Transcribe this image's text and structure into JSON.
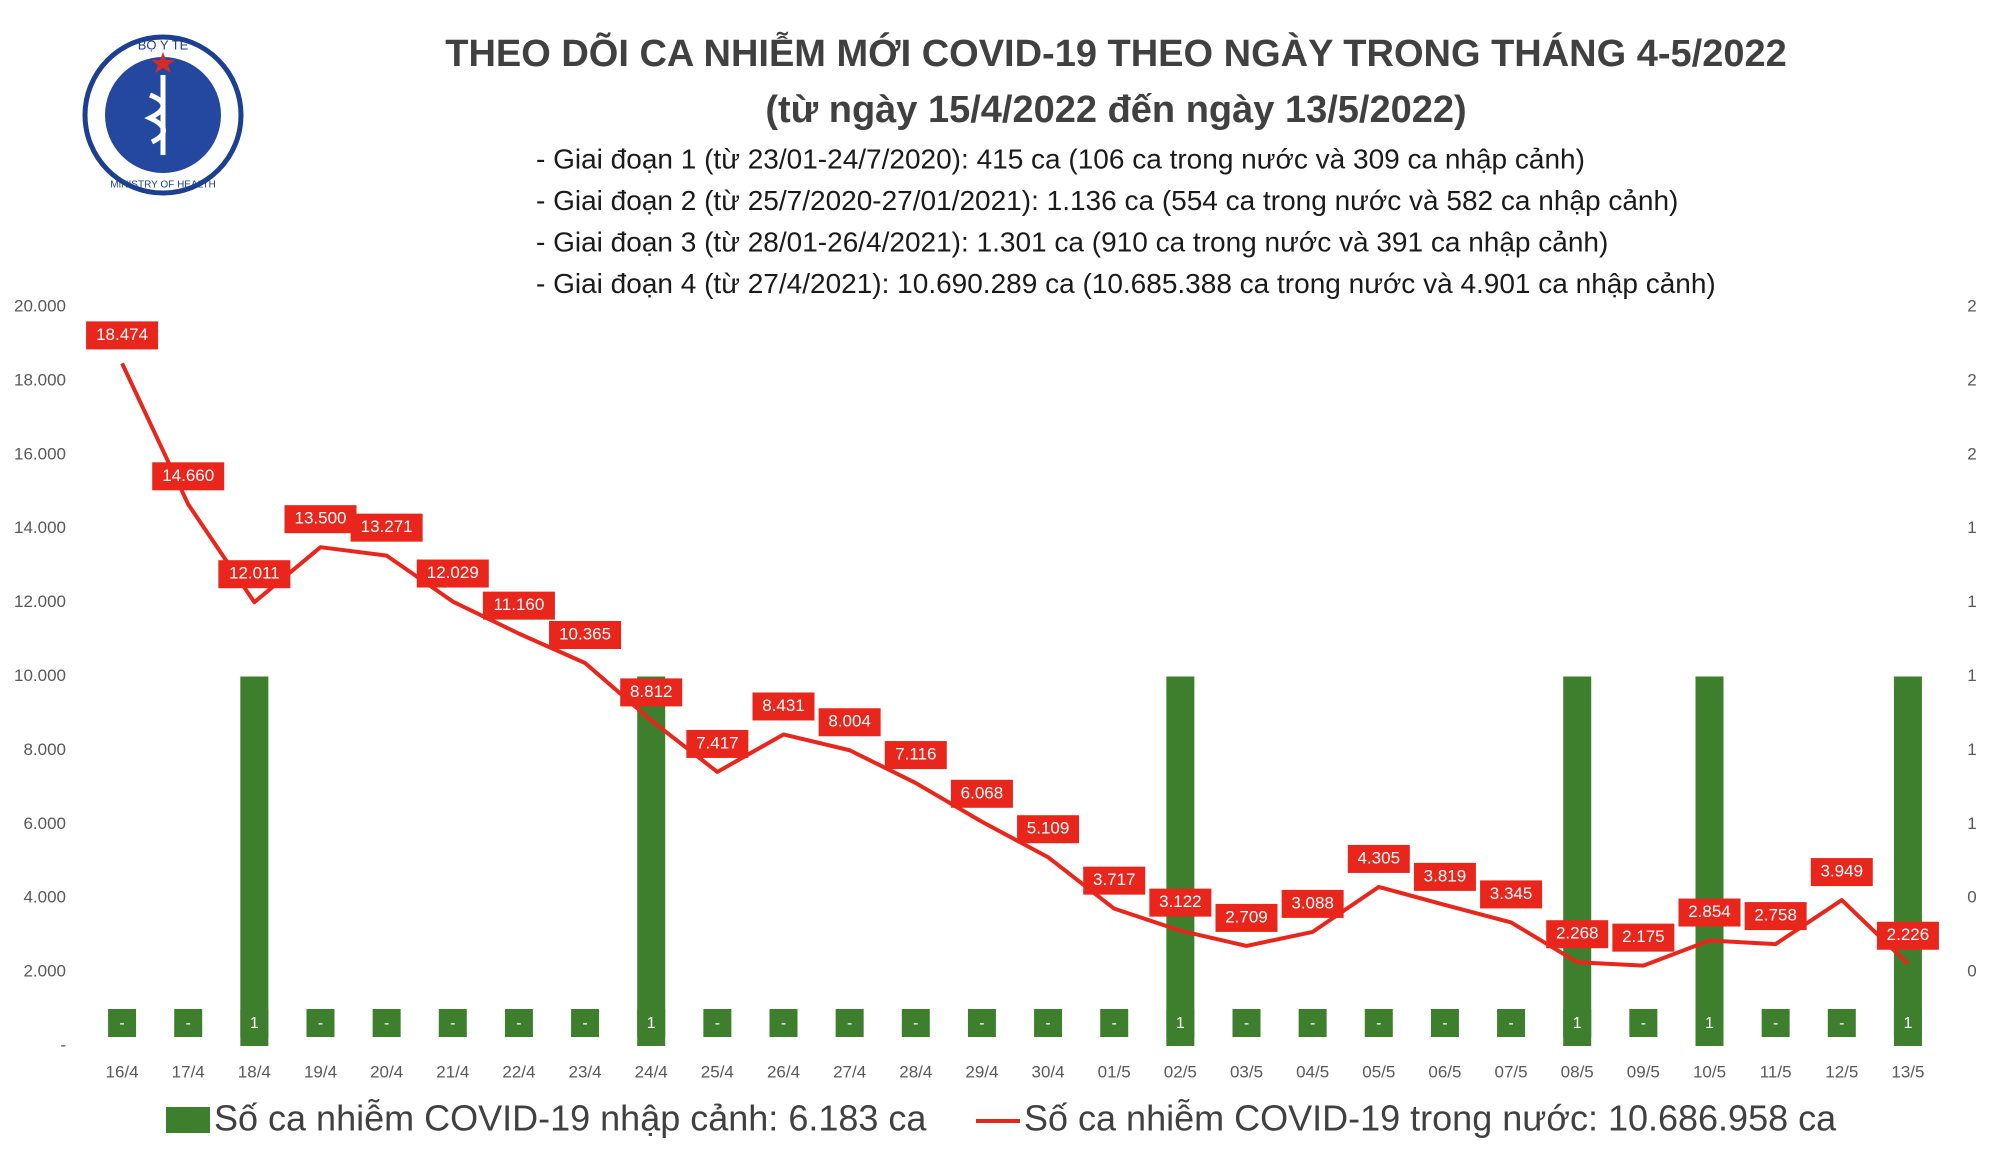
{
  "logo": {
    "top": "BỘ Y TẾ",
    "bottom": "MINISTRY OF HEALTH"
  },
  "chart_data": {
    "type": "combo",
    "title": "THEO DÕI CA NHIỄM MỚI COVID-19 THEO NGÀY TRONG THÁNG 4-5/2022",
    "subtitle": "(từ ngày 15/4/2022 đến ngày 13/5/2022)",
    "notes": [
      "- Giai đoạn 1 (từ 23/01-24/7/2020): 415 ca (106 ca trong nước và 309 ca nhập cảnh)",
      "- Giai đoạn 2 (từ 25/7/2020-27/01/2021): 1.136 ca (554 ca trong nước và 582 ca nhập cảnh)",
      "- Giai đoạn 3 (từ 28/01-26/4/2021): 1.301 ca (910 ca trong nước và 391 ca nhập cảnh)",
      "- Giai đoạn 4 (từ 27/4/2021): 10.690.289 ca (10.685.388 ca trong nước và 4.901 ca nhập cảnh)"
    ],
    "categories": [
      "16/4",
      "17/4",
      "18/4",
      "19/4",
      "20/4",
      "21/4",
      "22/4",
      "23/4",
      "24/4",
      "25/4",
      "26/4",
      "27/4",
      "28/4",
      "29/4",
      "30/4",
      "01/5",
      "02/5",
      "03/5",
      "04/5",
      "05/5",
      "06/5",
      "07/5",
      "08/5",
      "09/5",
      "10/5",
      "11/5",
      "12/5",
      "13/5"
    ],
    "series": [
      {
        "name": "Số ca nhiễm COVID-19 nhập cảnh: 6.183 ca",
        "type": "bar",
        "axis": "y2",
        "color": "#3e7f2e",
        "values": [
          0,
          0,
          1,
          0,
          0,
          0,
          0,
          0,
          1,
          0,
          0,
          0,
          0,
          0,
          0,
          0,
          1,
          0,
          0,
          0,
          0,
          0,
          1,
          0,
          1,
          0,
          0,
          1
        ],
        "value_labels": [
          "-",
          "-",
          "1",
          "-",
          "-",
          "-",
          "-",
          "-",
          "1",
          "-",
          "-",
          "-",
          "-",
          "-",
          "-",
          "-",
          "1",
          "-",
          "-",
          "-",
          "-",
          "-",
          "1",
          "-",
          "1",
          "-",
          "-",
          "1"
        ]
      },
      {
        "name": "Số ca nhiễm COVID-19 trong nước: 10.686.958 ca",
        "type": "line",
        "color": "#e8261c",
        "values": [
          18474,
          14660,
          12011,
          13500,
          13271,
          12029,
          11160,
          10365,
          8812,
          7417,
          8431,
          8004,
          7116,
          6068,
          5109,
          3717,
          3122,
          2709,
          3088,
          4305,
          3819,
          3345,
          2268,
          2175,
          2854,
          2758,
          3949,
          2226
        ],
        "value_labels": [
          "18.474",
          "14.660",
          "12.011",
          "13.500",
          "13.271",
          "12.029",
          "11.160",
          "10.365",
          "8.812",
          "7.417",
          "8.431",
          "8.004",
          "7.116",
          "6.068",
          "5.109",
          "3.717",
          "3.122",
          "2.709",
          "3.088",
          "4.305",
          "3.819",
          "3.345",
          "2.268",
          "2.175",
          "2.854",
          "2.758",
          "3.949",
          "2.226"
        ]
      }
    ],
    "ylim": [
      0,
      20000
    ],
    "yticks": [
      {
        "value": 0,
        "label": "-"
      },
      {
        "value": 2000,
        "label": "2.000"
      },
      {
        "value": 4000,
        "label": "4.000"
      },
      {
        "value": 6000,
        "label": "6.000"
      },
      {
        "value": 8000,
        "label": "8.000"
      },
      {
        "value": 10000,
        "label": "10.000"
      },
      {
        "value": 12000,
        "label": "12.000"
      },
      {
        "value": 14000,
        "label": "14.000"
      },
      {
        "value": 16000,
        "label": "16.000"
      },
      {
        "value": 18000,
        "label": "18.000"
      },
      {
        "value": 20000,
        "label": "20.000"
      }
    ],
    "y2lim": [
      0,
      2
    ],
    "y2ticks": [
      {
        "value": 0.2,
        "label": "0"
      },
      {
        "value": 0.4,
        "label": "0"
      },
      {
        "value": 0.6,
        "label": "1"
      },
      {
        "value": 0.8,
        "label": "1"
      },
      {
        "value": 1,
        "label": "1"
      },
      {
        "value": 1.2,
        "label": "1"
      },
      {
        "value": 1.4,
        "label": "1"
      },
      {
        "value": 1.6,
        "label": "2"
      },
      {
        "value": 1.8,
        "label": "2"
      },
      {
        "value": 2,
        "label": "2"
      }
    ],
    "grid": false,
    "legend": "bottom"
  }
}
